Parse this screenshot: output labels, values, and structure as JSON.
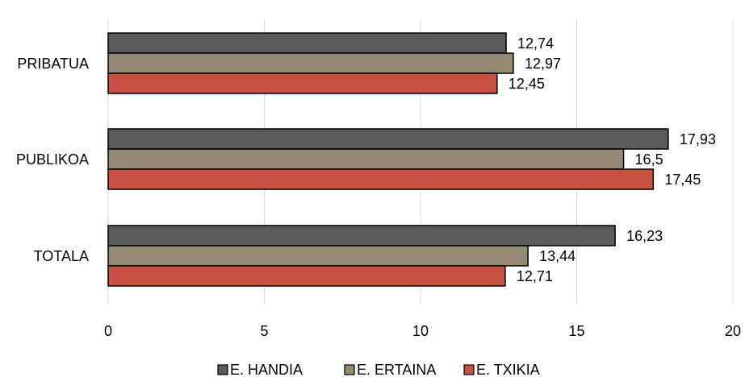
{
  "chart_data": {
    "type": "bar",
    "orientation": "horizontal",
    "categories": [
      "PRIBATUA",
      "PUBLIKOA",
      "TOTALA"
    ],
    "series": [
      {
        "name": "E. HANDIA",
        "color": "#595959",
        "values": [
          12.74,
          17.93,
          16.23
        ],
        "labels": [
          "12,74",
          "17,93",
          "16,23"
        ]
      },
      {
        "name": "E. ERTAINA",
        "color": "#948A74",
        "values": [
          12.97,
          16.5,
          13.44
        ],
        "labels": [
          "12,97",
          "16,5",
          "13,44"
        ]
      },
      {
        "name": "E. TXIKIA",
        "color": "#C65243",
        "values": [
          12.45,
          17.45,
          12.71
        ],
        "labels": [
          "12,45",
          "17,45",
          "12,71"
        ]
      }
    ],
    "xlim": [
      0,
      20
    ],
    "xticks": [
      0,
      5,
      10,
      15,
      20
    ],
    "xtick_labels": [
      "0",
      "5",
      "10",
      "15",
      "20"
    ],
    "grid": true,
    "legend_position": "bottom",
    "title": "",
    "xlabel": "",
    "ylabel": ""
  }
}
